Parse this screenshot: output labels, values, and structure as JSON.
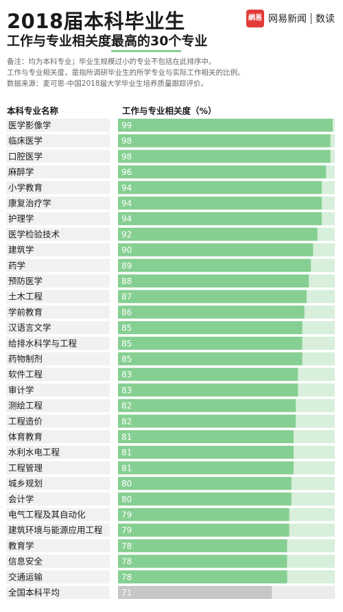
{
  "title": "2018届本科毕业生",
  "subtitle_pre": "工作与专业相关度",
  "subtitle_hl": "最高的30个",
  "subtitle_post": "专业",
  "brand": {
    "logo_text": "網易",
    "name": "网易新闻",
    "sub": "数读",
    "color": "#e33b3b"
  },
  "notes": [
    "备注：均为本科专业；毕业生规模过小的专业不包括在此排序中。",
    "工作与专业相关度，是指所调研毕业生的所学专业与实际工作相关的比例。",
    "数据来源：麦可思-中国2018届大学毕业生培养质量跟踪评价。"
  ],
  "colors": {
    "bar": "#86cf92",
    "track": "#d7efdb",
    "avg_bar": "#c7c7c7",
    "avg_track": "#ececec",
    "label_bg": "#f1f1f1"
  },
  "chart_data": {
    "type": "bar",
    "orientation": "horizontal",
    "xlabel": "工作与专业相关度（%）",
    "ylabel": "本科专业名称",
    "xlim": [
      0,
      100
    ],
    "categories": [
      "医学影像学",
      "临床医学",
      "口腔医学",
      "麻醉学",
      "小学教育",
      "康复治疗学",
      "护理学",
      "医学检验技术",
      "建筑学",
      "药学",
      "预防医学",
      "土木工程",
      "学前教育",
      "汉语言文学",
      "给排水科学与工程",
      "药物制剂",
      "软件工程",
      "审计学",
      "测绘工程",
      "工程造价",
      "体育教育",
      "水利水电工程",
      "工程管理",
      "城乡规划",
      "会计学",
      "电气工程及其自动化",
      "建筑环境与能源应用工程",
      "教育学",
      "信息安全",
      "交通运输",
      "全国本科平均"
    ],
    "values": [
      99,
      98,
      98,
      96,
      94,
      94,
      94,
      92,
      90,
      89,
      88,
      87,
      86,
      85,
      85,
      85,
      83,
      83,
      82,
      82,
      81,
      81,
      81,
      80,
      80,
      79,
      79,
      78,
      78,
      78,
      71
    ],
    "highlight_last_as_average": true
  }
}
